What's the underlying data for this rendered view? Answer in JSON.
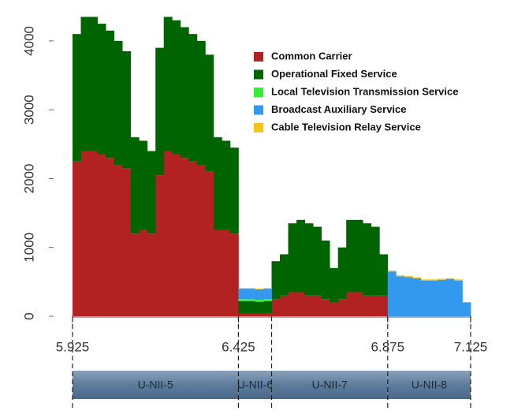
{
  "chart_data": {
    "type": "histogram",
    "bins": [
      5.925,
      5.95,
      5.975,
      6.0,
      6.025,
      6.05,
      6.075,
      6.1,
      6.125,
      6.15,
      6.175,
      6.2,
      6.225,
      6.25,
      6.275,
      6.3,
      6.325,
      6.35,
      6.375,
      6.4,
      6.425,
      6.45,
      6.475,
      6.5,
      6.525,
      6.55,
      6.575,
      6.6,
      6.625,
      6.65,
      6.675,
      6.7,
      6.725,
      6.75,
      6.775,
      6.8,
      6.825,
      6.85,
      6.875,
      6.9,
      6.925,
      6.95,
      6.975,
      7.0,
      7.025,
      7.05,
      7.075,
      7.1,
      7.125
    ],
    "stacked": true,
    "series": [
      {
        "name": "Common Carrier",
        "color": "#b22222",
        "values": [
          2250,
          2400,
          2400,
          2350,
          2300,
          2200,
          2150,
          1200,
          1250,
          1200,
          2050,
          2400,
          2350,
          2300,
          2250,
          2200,
          2100,
          1250,
          1250,
          1200,
          40,
          40,
          40,
          40,
          250,
          300,
          350,
          350,
          300,
          300,
          250,
          200,
          250,
          350,
          350,
          300,
          300,
          300,
          0,
          0,
          0,
          0,
          0,
          0,
          0,
          0,
          0,
          0
        ]
      },
      {
        "name": "Operational Fixed Service",
        "color": "#006400",
        "values": [
          1850,
          1950,
          1950,
          1900,
          1850,
          1800,
          1700,
          1400,
          1300,
          1200,
          1850,
          1950,
          1950,
          1900,
          1850,
          1800,
          1700,
          1350,
          1300,
          1250,
          180,
          180,
          170,
          180,
          550,
          600,
          1000,
          1050,
          1050,
          1000,
          850,
          500,
          750,
          1050,
          1050,
          1050,
          1000,
          600,
          0,
          0,
          0,
          0,
          0,
          0,
          0,
          0,
          0,
          0
        ]
      },
      {
        "name": "Local Television Transmission Service",
        "color": "#33ee33",
        "values": [
          0,
          0,
          0,
          0,
          0,
          0,
          0,
          0,
          0,
          0,
          0,
          0,
          0,
          0,
          0,
          0,
          0,
          0,
          0,
          0,
          30,
          30,
          30,
          30,
          0,
          0,
          0,
          0,
          0,
          0,
          0,
          0,
          0,
          0,
          0,
          0,
          0,
          0,
          0,
          0,
          0,
          0,
          0,
          0,
          0,
          0,
          0,
          0
        ]
      },
      {
        "name": "Broadcast Auxiliary Service",
        "color": "#3399ee",
        "values": [
          0,
          0,
          0,
          0,
          0,
          0,
          0,
          0,
          0,
          0,
          0,
          0,
          0,
          0,
          0,
          0,
          0,
          0,
          0,
          0,
          150,
          150,
          150,
          150,
          0,
          0,
          0,
          0,
          0,
          0,
          0,
          0,
          0,
          0,
          0,
          0,
          0,
          0,
          650,
          580,
          570,
          550,
          520,
          520,
          530,
          540,
          520,
          200
        ]
      },
      {
        "name": "Cable Television Relay Service",
        "color": "#f5c518",
        "values": [
          0,
          0,
          0,
          0,
          0,
          0,
          0,
          0,
          0,
          0,
          0,
          0,
          0,
          0,
          0,
          0,
          0,
          0,
          0,
          0,
          10,
          10,
          10,
          10,
          0,
          0,
          0,
          0,
          0,
          0,
          0,
          0,
          0,
          0,
          0,
          0,
          0,
          0,
          15,
          15,
          15,
          15,
          15,
          15,
          15,
          15,
          15,
          5
        ]
      }
    ],
    "xlim": [
      5.925,
      7.125
    ],
    "xticks": [
      5.925,
      6.425,
      6.875,
      7.125
    ],
    "ylim": [
      0,
      4400
    ],
    "yticks": [
      0,
      1000,
      2000,
      3000,
      4000
    ],
    "legend": "upper right",
    "bands": [
      {
        "label": "U-NII-5",
        "range": [
          5.925,
          6.425
        ]
      },
      {
        "label": "U-NII-6",
        "range": [
          6.425,
          6.525
        ]
      },
      {
        "label": "U-NII-7",
        "range": [
          6.525,
          6.875
        ]
      },
      {
        "label": "U-NII-8",
        "range": [
          6.875,
          7.125
        ]
      }
    ]
  }
}
